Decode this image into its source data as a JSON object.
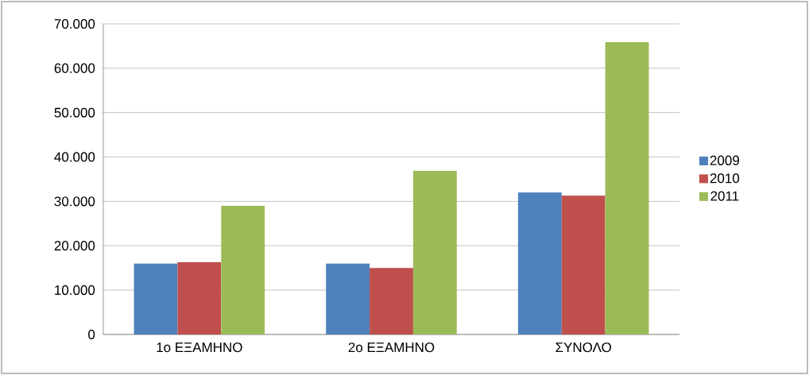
{
  "chart_data": {
    "type": "bar",
    "categories": [
      "1ο ΕΞΑΜΗΝΟ",
      "2ο ΕΞΑΜΗΝΟ",
      "ΣΥΝΟΛΟ"
    ],
    "series": [
      {
        "name": "2009",
        "color": "#4f81bd",
        "values": [
          16000,
          16000,
          32000
        ]
      },
      {
        "name": "2010",
        "color": "#c0504d",
        "values": [
          16300,
          15000,
          31300
        ]
      },
      {
        "name": "2011",
        "color": "#9bbb59",
        "values": [
          29000,
          36900,
          65900
        ]
      }
    ],
    "ylim": [
      0,
      70000
    ],
    "yticks": [
      {
        "value": 0,
        "label": "0"
      },
      {
        "value": 10000,
        "label": "10.000"
      },
      {
        "value": 20000,
        "label": "20.000"
      },
      {
        "value": 30000,
        "label": "30.000"
      },
      {
        "value": 40000,
        "label": "40.000"
      },
      {
        "value": 50000,
        "label": "50.000"
      },
      {
        "value": 60000,
        "label": "60.000"
      },
      {
        "value": 70000,
        "label": "70.000"
      }
    ],
    "grid": "y",
    "legend": "right"
  }
}
